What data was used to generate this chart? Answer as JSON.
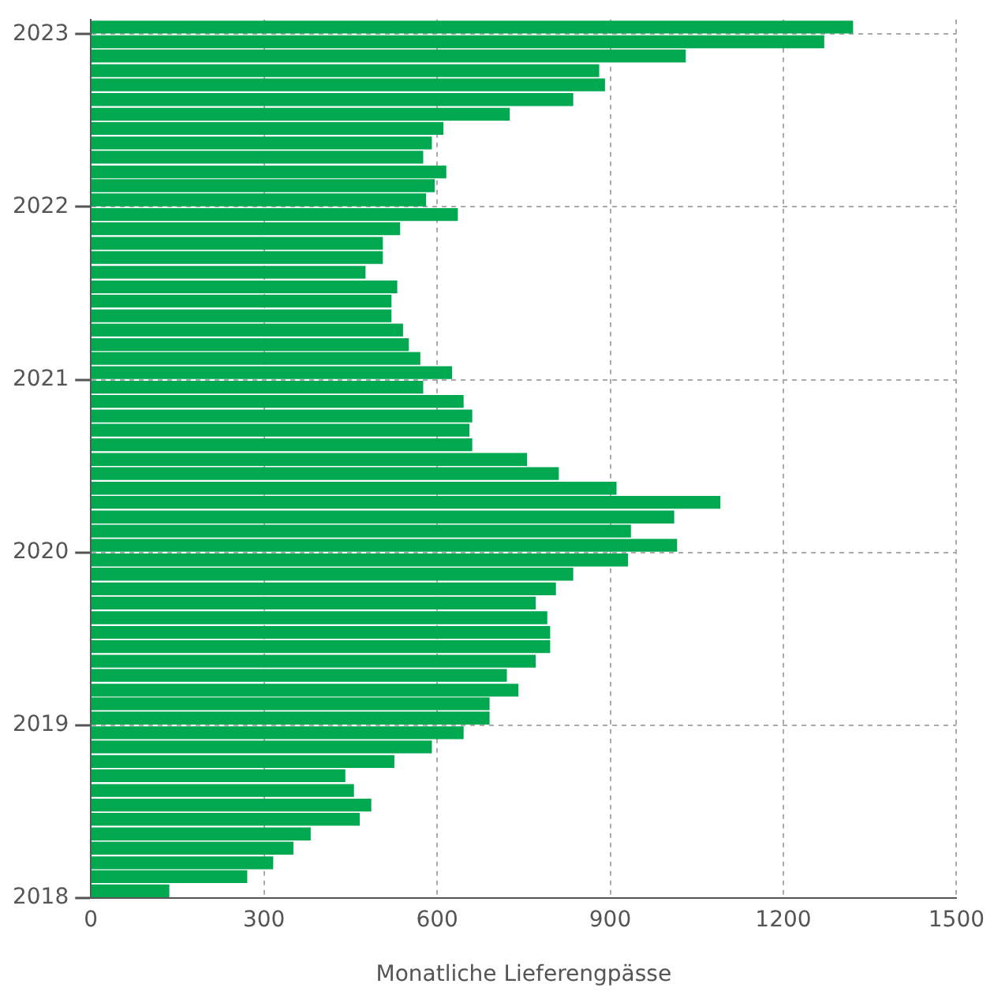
{
  "chart_data": {
    "type": "bar",
    "orientation": "horizontal",
    "xlabel": "Monatliche Lieferengpässe",
    "x": [
      "2018-01-16",
      "2018-02-15",
      "2018-03-16",
      "2018-04-16",
      "2018-05-16",
      "2018-06-16",
      "2018-07-16",
      "2018-08-16",
      "2018-09-16",
      "2018-10-16",
      "2018-11-16",
      "2018-12-16",
      "2019-01-16",
      "2019-02-15",
      "2019-03-16",
      "2019-04-16",
      "2019-05-16",
      "2019-06-16",
      "2019-07-16",
      "2019-08-16",
      "2019-09-16",
      "2019-10-16",
      "2019-11-16",
      "2019-12-16",
      "2020-01-16",
      "2020-02-15",
      "2020-03-16",
      "2020-04-16",
      "2020-05-16",
      "2020-06-16",
      "2020-07-16",
      "2020-08-16",
      "2020-09-16",
      "2020-10-16",
      "2020-11-16",
      "2020-12-16",
      "2021-01-16",
      "2021-02-15",
      "2021-03-16",
      "2021-04-16",
      "2021-05-16",
      "2021-06-16",
      "2021-07-16",
      "2021-08-16",
      "2021-09-16",
      "2021-10-16",
      "2021-11-16",
      "2021-12-16",
      "2022-01-16",
      "2022-02-15",
      "2022-03-16",
      "2022-04-16",
      "2022-05-16",
      "2022-06-16",
      "2022-07-16",
      "2022-08-16",
      "2022-09-16",
      "2022-10-16",
      "2022-11-16",
      "2022-12-16",
      "2023-01-16"
    ],
    "values": [
      135,
      270,
      315,
      350,
      380,
      465,
      485,
      455,
      440,
      525,
      590,
      645,
      690,
      690,
      740,
      720,
      770,
      795,
      795,
      790,
      770,
      805,
      835,
      930,
      1015,
      935,
      1010,
      1090,
      910,
      810,
      755,
      660,
      655,
      660,
      645,
      575,
      625,
      570,
      550,
      540,
      520,
      520,
      530,
      475,
      505,
      505,
      535,
      635,
      580,
      595,
      615,
      575,
      590,
      610,
      725,
      835,
      890,
      880,
      1030,
      1270,
      1320
    ],
    "color": "#00a84f",
    "xlim": [
      0,
      1500
    ],
    "xticks": [
      0,
      300,
      600,
      900,
      1200,
      1500
    ],
    "ylim": [
      "2018-01",
      "2023-02"
    ],
    "yticks": [
      "2018",
      "2019",
      "2020",
      "2021",
      "2022",
      "2023"
    ],
    "grid": true,
    "legend": false
  }
}
